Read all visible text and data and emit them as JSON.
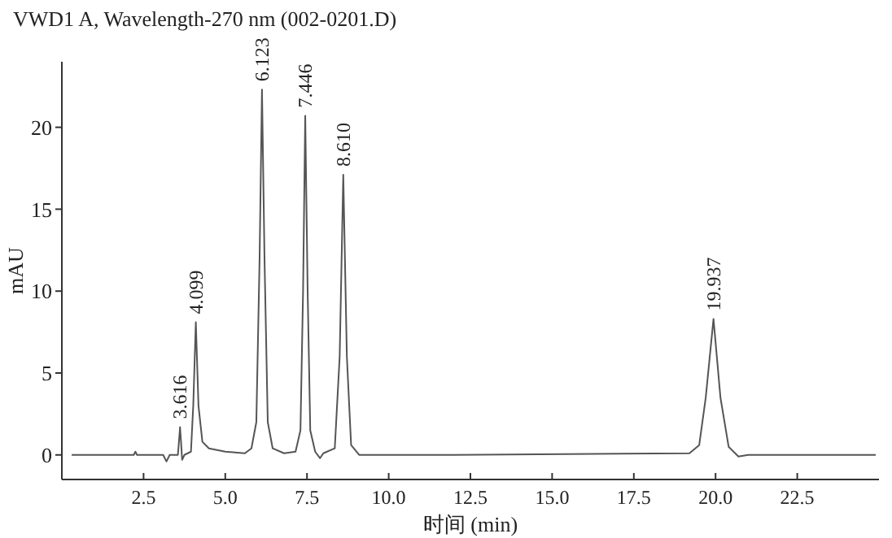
{
  "chart_data": {
    "type": "line",
    "title": "VWD1 A, Wavelength-270 nm (002-0201.D)",
    "xlabel": "时间 (min)",
    "ylabel": "mAU",
    "xlim": [
      0,
      25
    ],
    "ylim": [
      -1.5,
      24
    ],
    "xticks": [
      {
        "value": 2.5,
        "label": "2.5"
      },
      {
        "value": 5,
        "label": "5.0"
      },
      {
        "value": 7.5,
        "label": "7.5"
      },
      {
        "value": 10,
        "label": "10.0"
      },
      {
        "value": 12.5,
        "label": "12.5"
      },
      {
        "value": 15,
        "label": "15.0"
      },
      {
        "value": 17.5,
        "label": "17.5"
      },
      {
        "value": 20,
        "label": "20.0"
      },
      {
        "value": 22.5,
        "label": "22.5"
      }
    ],
    "yticks": [
      0,
      5,
      10,
      15,
      20
    ],
    "grid": false,
    "marker": "none",
    "line_style": "solid",
    "series": [
      {
        "color": "#555555",
        "x": [
          0.3,
          2.2,
          2.25,
          2.3,
          3.1,
          3.2,
          3.3,
          3.55,
          3.59,
          3.616,
          3.64,
          3.68,
          3.75,
          3.95,
          4.02,
          4.099,
          4.18,
          4.3,
          4.5,
          5.0,
          5.6,
          5.8,
          5.95,
          6.05,
          6.123,
          6.2,
          6.3,
          6.45,
          6.8,
          7.15,
          7.3,
          7.38,
          7.446,
          7.52,
          7.6,
          7.75,
          7.9,
          8.0,
          8.35,
          8.5,
          8.61,
          8.72,
          8.85,
          9.1,
          12,
          19.2,
          19.5,
          19.7,
          19.937,
          20.15,
          20.4,
          20.7,
          21,
          24.9
        ],
        "values": [
          0,
          0,
          0.2,
          0,
          0,
          -0.4,
          0,
          0,
          1,
          1.7,
          1,
          -0.3,
          0,
          0.2,
          3,
          8.1,
          3,
          0.8,
          0.4,
          0.2,
          0.1,
          0.4,
          2,
          12,
          22.3,
          12,
          2,
          0.4,
          0.1,
          0.2,
          1.5,
          10,
          20.7,
          10,
          1.5,
          0.2,
          -0.2,
          0.1,
          0.4,
          6,
          17.1,
          6,
          0.6,
          0,
          0,
          0.1,
          0.6,
          3.5,
          8.3,
          3.5,
          0.5,
          -0.1,
          0,
          0
        ]
      }
    ],
    "annotations": [
      {
        "text": "3.616",
        "x": 3.616,
        "y": 1.7
      },
      {
        "text": "4.099",
        "x": 4.099,
        "y": 8.1
      },
      {
        "text": "6.123",
        "x": 6.123,
        "y": 22.3
      },
      {
        "text": "7.446",
        "x": 7.446,
        "y": 20.7
      },
      {
        "text": "8.610",
        "x": 8.61,
        "y": 17.1
      },
      {
        "text": "19.937",
        "x": 19.937,
        "y": 8.3
      }
    ]
  }
}
